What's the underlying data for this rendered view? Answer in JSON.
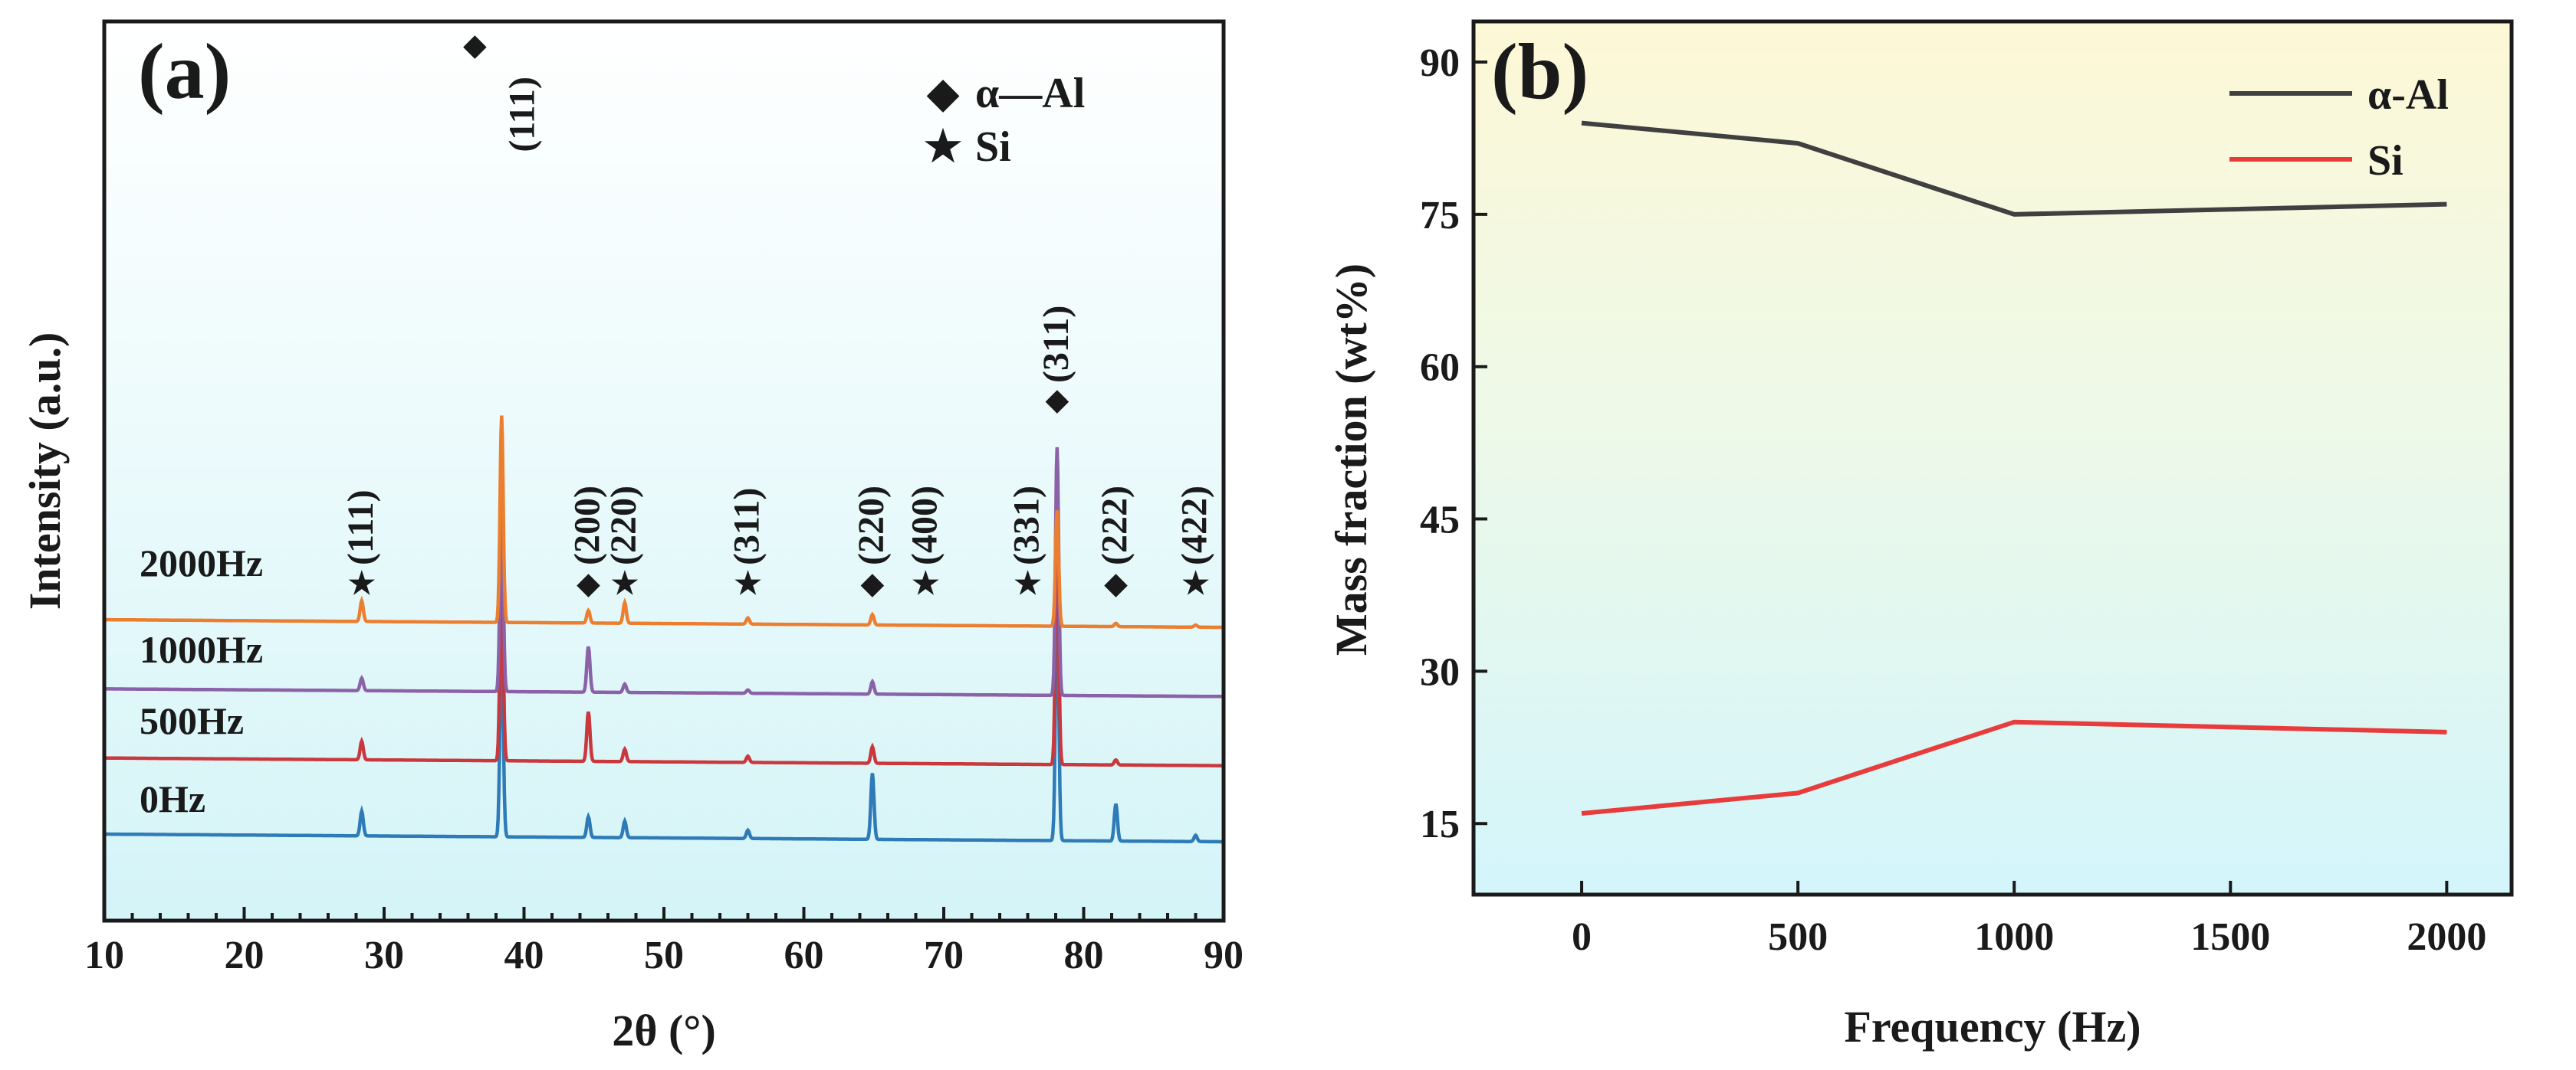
{
  "colors": {
    "hz0": "#2e7bb8",
    "hz500": "#c9383d",
    "hz1000": "#8b62a8",
    "hz2000": "#ec7f2f",
    "al": "#404040",
    "si": "#e83c3c"
  },
  "chart_data": [
    {
      "type": "line",
      "panel_label": "(a)",
      "xlabel": "2θ (°)",
      "ylabel": "Intensity (a.u.)",
      "xlim": [
        10,
        90
      ],
      "x_ticks": [
        "10",
        "20",
        "30",
        "40",
        "50",
        "60",
        "70",
        "80",
        "90"
      ],
      "legend": [
        {
          "symbol": "◆",
          "label": "α—Al"
        },
        {
          "symbol": "★",
          "label": "Si"
        }
      ],
      "series": [
        {
          "name": "0Hz",
          "color_key": "hz0",
          "baseline": 0.0,
          "peaks": [
            [
              28.4,
              0.6
            ],
            [
              38.4,
              5.0
            ],
            [
              44.6,
              0.5
            ],
            [
              47.2,
              0.4
            ],
            [
              56.0,
              0.2
            ],
            [
              64.9,
              1.6
            ],
            [
              78.1,
              6.0
            ],
            [
              82.3,
              0.9
            ],
            [
              88.0,
              0.15
            ]
          ]
        },
        {
          "name": "500Hz",
          "color_key": "hz500",
          "baseline": 1.1,
          "peaks": [
            [
              28.4,
              0.45
            ],
            [
              38.4,
              5.0
            ],
            [
              44.6,
              1.2
            ],
            [
              47.2,
              0.3
            ],
            [
              56.0,
              0.15
            ],
            [
              64.9,
              0.4
            ],
            [
              78.1,
              6.0
            ],
            [
              82.3,
              0.12
            ]
          ]
        },
        {
          "name": "1000Hz",
          "color_key": "hz1000",
          "baseline": 2.1,
          "peaks": [
            [
              28.4,
              0.3
            ],
            [
              38.4,
              5.0
            ],
            [
              44.6,
              1.1
            ],
            [
              47.2,
              0.2
            ],
            [
              56.0,
              0.08
            ],
            [
              64.9,
              0.3
            ],
            [
              78.1,
              6.0
            ]
          ]
        },
        {
          "name": "2000Hz",
          "color_key": "hz2000",
          "baseline": 3.1,
          "peaks": [
            [
              28.4,
              0.5
            ],
            [
              38.4,
              5.0
            ],
            [
              44.6,
              0.3
            ],
            [
              47.2,
              0.5
            ],
            [
              56.0,
              0.15
            ],
            [
              64.9,
              0.25
            ],
            [
              78.1,
              2.8
            ],
            [
              82.3,
              0.08
            ],
            [
              88.0,
              0.05
            ]
          ]
        }
      ],
      "peak_annotations": [
        {
          "x": 39.5,
          "symbol": "◆",
          "label": "(111)",
          "row": "top"
        },
        {
          "x": 28.4,
          "symbol": "★",
          "label": "(111)",
          "row": "mid"
        },
        {
          "x": 44.6,
          "symbol": "◆",
          "label": "(200)",
          "row": "mid"
        },
        {
          "x": 47.2,
          "symbol": "★",
          "label": "(220)",
          "row": "mid"
        },
        {
          "x": 56.0,
          "symbol": "★",
          "label": "(311)",
          "row": "mid"
        },
        {
          "x": 64.9,
          "symbol": "◆",
          "label": "(220)",
          "row": "mid"
        },
        {
          "x": 68.7,
          "symbol": "★",
          "label": "(400)",
          "row": "mid"
        },
        {
          "x": 76.0,
          "symbol": "★",
          "label": "(331)",
          "row": "mid"
        },
        {
          "x": 78.1,
          "symbol": "◆",
          "label": "(311)",
          "row": "high"
        },
        {
          "x": 82.3,
          "symbol": "◆",
          "label": "(222)",
          "row": "mid"
        },
        {
          "x": 88.0,
          "symbol": "★",
          "label": "(422)",
          "row": "mid"
        }
      ]
    },
    {
      "type": "line",
      "panel_label": "(b)",
      "xlabel": "Frequency (Hz)",
      "ylabel": "Mass fraction (wt%)",
      "xlim": [
        -250,
        2150
      ],
      "ylim": [
        8,
        94
      ],
      "x_ticks": [
        0,
        500,
        1000,
        1500,
        2000
      ],
      "y_ticks": [
        15,
        30,
        45,
        60,
        75,
        90
      ],
      "categories": [
        0,
        500,
        1000,
        2000
      ],
      "series": [
        {
          "name": "α-Al",
          "color_key": "al",
          "values": [
            84,
            82,
            75,
            76
          ]
        },
        {
          "name": "Si",
          "color_key": "si",
          "values": [
            16,
            18,
            25,
            24
          ]
        }
      ]
    }
  ]
}
